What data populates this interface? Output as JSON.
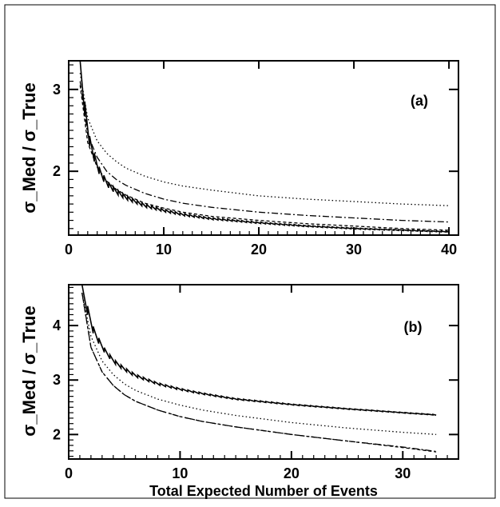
{
  "chart_data": [
    {
      "type": "line",
      "panel_label": "(a)",
      "ylabel": "σ_Med / σ_True",
      "xlabel": "",
      "xlim": [
        0,
        41
      ],
      "ylim": [
        1.22,
        3.35
      ],
      "xticks": [
        0,
        10,
        20,
        30,
        40
      ],
      "yticks": [
        2,
        3
      ],
      "series": [
        {
          "style": "solid",
          "kind": "sawtooth",
          "x": [
            1.2,
            2,
            3,
            4,
            5,
            6,
            8,
            10,
            12,
            15,
            20,
            25,
            30,
            35,
            40
          ],
          "y": [
            3.3,
            2.45,
            2.05,
            1.85,
            1.75,
            1.68,
            1.58,
            1.52,
            1.47,
            1.42,
            1.37,
            1.33,
            1.3,
            1.28,
            1.26
          ]
        },
        {
          "style": "dashed",
          "kind": "smooth",
          "x": [
            1.2,
            2,
            3,
            4,
            5,
            6,
            8,
            10,
            12,
            15,
            20,
            25,
            30,
            35,
            40
          ],
          "y": [
            3.05,
            2.35,
            2.05,
            1.88,
            1.78,
            1.71,
            1.61,
            1.55,
            1.5,
            1.45,
            1.4,
            1.36,
            1.33,
            1.3,
            1.28
          ]
        },
        {
          "style": "dashdot",
          "kind": "smooth",
          "x": [
            1.2,
            2,
            3,
            4,
            5,
            6,
            8,
            10,
            12,
            15,
            20,
            25,
            30,
            35,
            40
          ],
          "y": [
            3.1,
            2.45,
            2.17,
            2.0,
            1.9,
            1.83,
            1.73,
            1.66,
            1.61,
            1.56,
            1.5,
            1.46,
            1.43,
            1.4,
            1.38
          ]
        },
        {
          "style": "dotted",
          "kind": "smooth",
          "x": [
            1.2,
            2,
            3,
            4,
            5,
            6,
            8,
            10,
            12,
            15,
            20,
            25,
            30,
            35,
            40
          ],
          "y": [
            3.2,
            2.65,
            2.37,
            2.22,
            2.12,
            2.04,
            1.94,
            1.87,
            1.82,
            1.77,
            1.7,
            1.66,
            1.63,
            1.6,
            1.58
          ]
        }
      ]
    },
    {
      "type": "line",
      "panel_label": "(b)",
      "ylabel": "σ_Med / σ_True",
      "xlabel": "Total Expected Number of Events",
      "xlim": [
        0,
        35
      ],
      "ylim": [
        1.55,
        4.75
      ],
      "xticks": [
        0,
        10,
        20,
        30
      ],
      "yticks": [
        2,
        3,
        4
      ],
      "series": [
        {
          "style": "solid",
          "kind": "sawtooth",
          "x": [
            1.2,
            2,
            3,
            4,
            5,
            6,
            8,
            10,
            12,
            15,
            20,
            25,
            30,
            33
          ],
          "y": [
            4.75,
            4.0,
            3.6,
            3.35,
            3.2,
            3.08,
            2.93,
            2.83,
            2.75,
            2.65,
            2.55,
            2.47,
            2.4,
            2.36
          ]
        },
        {
          "style": "dotted",
          "kind": "smooth",
          "x": [
            1.2,
            2,
            3,
            4,
            5,
            6,
            8,
            10,
            12,
            15,
            20,
            25,
            30,
            33
          ],
          "y": [
            4.6,
            3.8,
            3.35,
            3.1,
            2.93,
            2.81,
            2.65,
            2.54,
            2.45,
            2.35,
            2.22,
            2.12,
            2.04,
            2.0
          ]
        },
        {
          "style": "dashed",
          "kind": "smooth",
          "x": [
            1.2,
            2,
            3,
            4,
            5,
            6,
            8,
            10,
            12,
            15,
            20,
            25,
            30,
            33
          ],
          "y": [
            4.6,
            3.6,
            3.15,
            2.9,
            2.73,
            2.61,
            2.45,
            2.33,
            2.24,
            2.14,
            2.0,
            1.88,
            1.76,
            1.68
          ]
        },
        {
          "style": "dashdot",
          "kind": "smooth",
          "x": [
            1.2,
            2,
            3,
            4,
            5,
            6,
            8,
            10,
            12,
            15,
            20,
            25,
            30,
            33
          ],
          "y": [
            4.6,
            3.6,
            3.15,
            2.9,
            2.73,
            2.61,
            2.45,
            2.33,
            2.24,
            2.14,
            2.0,
            1.88,
            1.77,
            1.69
          ]
        }
      ]
    }
  ]
}
